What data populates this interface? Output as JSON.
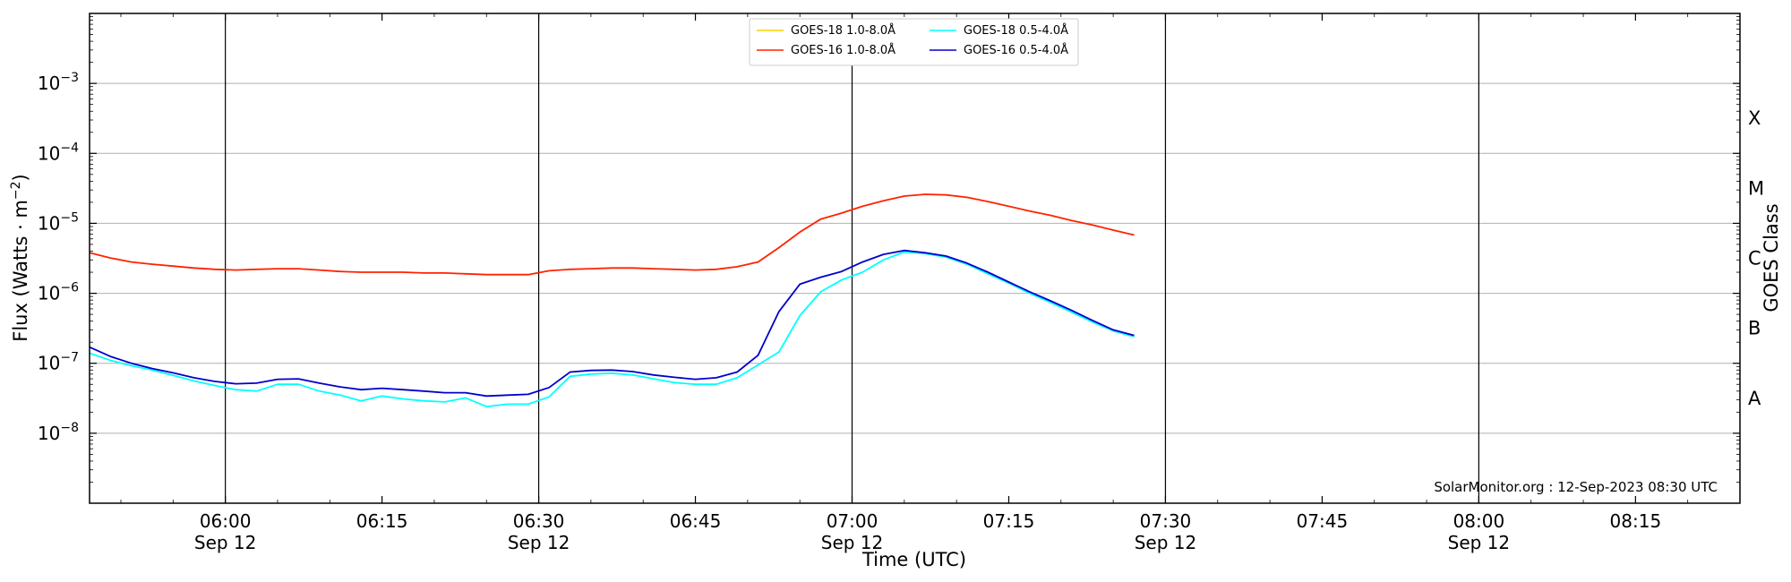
{
  "chart_data": {
    "type": "line",
    "title": "",
    "xlabel": "Time (UTC)",
    "ylabel": "Flux (Watts · m",
    "ylabel_sup": "−2",
    "ylabel_end": ")",
    "right_label": "GOES Class",
    "y_scale": "log",
    "ylim": [
      1e-09,
      0.01
    ],
    "x_range_minutes": [
      "05:47",
      "08:25"
    ],
    "grid": "horizontal at decades; vertical lines every 30 min",
    "legend": "top-center",
    "x_ticks": [
      {
        "time": "06:00",
        "date": "Sep 12"
      },
      {
        "time": "06:15",
        "date": ""
      },
      {
        "time": "06:30",
        "date": "Sep 12"
      },
      {
        "time": "06:45",
        "date": ""
      },
      {
        "time": "07:00",
        "date": "Sep 12"
      },
      {
        "time": "07:15",
        "date": ""
      },
      {
        "time": "07:30",
        "date": "Sep 12"
      },
      {
        "time": "07:45",
        "date": ""
      },
      {
        "time": "08:00",
        "date": "Sep 12"
      },
      {
        "time": "08:15",
        "date": ""
      }
    ],
    "y_ticks": [
      {
        "base": "10",
        "exp": "−3",
        "value": 0.001
      },
      {
        "base": "10",
        "exp": "−4",
        "value": 0.0001
      },
      {
        "base": "10",
        "exp": "−5",
        "value": 1e-05
      },
      {
        "base": "10",
        "exp": "−6",
        "value": 1e-06
      },
      {
        "base": "10",
        "exp": "−7",
        "value": 1e-07
      },
      {
        "base": "10",
        "exp": "−8",
        "value": 1e-08
      }
    ],
    "goes_classes": [
      {
        "label": "X",
        "value": 0.000316
      },
      {
        "label": "M",
        "value": 3.16e-05
      },
      {
        "label": "C",
        "value": 3.16e-06
      },
      {
        "label": "B",
        "value": 3.16e-07
      },
      {
        "label": "A",
        "value": 3.16e-08
      }
    ],
    "annotation": "SolarMonitor.org : 12-Sep-2023 08:30 UTC",
    "series": [
      {
        "name": "GOES-18 1.0-8.0Å",
        "color": "#f5d000",
        "x": [],
        "y": []
      },
      {
        "name": "GOES-18 0.5-4.0Å",
        "color": "#00ffff",
        "x": [
          "05:47",
          "05:49",
          "05:51",
          "05:53",
          "05:55",
          "05:57",
          "05:59",
          "06:01",
          "06:03",
          "06:05",
          "06:07",
          "06:09",
          "06:11",
          "06:13",
          "06:15",
          "06:17",
          "06:19",
          "06:21",
          "06:23",
          "06:25",
          "06:27",
          "06:29",
          "06:31",
          "06:33",
          "06:35",
          "06:37",
          "06:39",
          "06:41",
          "06:43",
          "06:45",
          "06:47",
          "06:49",
          "06:51",
          "06:53",
          "06:55",
          "06:57",
          "06:59",
          "07:01",
          "07:03",
          "07:05",
          "07:07",
          "07:09",
          "07:11",
          "07:13",
          "07:15",
          "07:17",
          "07:19",
          "07:21",
          "07:23",
          "07:25",
          "07:27"
        ],
        "y": [
          1.4e-07,
          1.1e-07,
          9.2e-08,
          8e-08,
          6.7e-08,
          5.6e-08,
          4.8e-08,
          4.2e-08,
          4e-08,
          5e-08,
          5e-08,
          4e-08,
          3.5e-08,
          2.9e-08,
          3.4e-08,
          3.1e-08,
          2.9e-08,
          2.8e-08,
          3.2e-08,
          2.4e-08,
          2.6e-08,
          2.6e-08,
          3.3e-08,
          6.5e-08,
          7e-08,
          7.2e-08,
          6.8e-08,
          6e-08,
          5.3e-08,
          5e-08,
          5e-08,
          6.2e-08,
          9.5e-08,
          1.45e-07,
          4.8e-07,
          1.05e-06,
          1.55e-06,
          2e-06,
          3e-06,
          3.9e-06,
          3.7e-06,
          3.3e-06,
          2.6e-06,
          1.9e-06,
          1.4e-06,
          1e-06,
          7.4e-07,
          5.4e-07,
          3.9e-07,
          2.9e-07,
          2.4e-07
        ]
      },
      {
        "name": "GOES-16 1.0-8.0Å",
        "color": "#ff2200",
        "x": [
          "05:47",
          "05:49",
          "05:51",
          "05:53",
          "05:55",
          "05:57",
          "05:59",
          "06:01",
          "06:03",
          "06:05",
          "06:07",
          "06:09",
          "06:11",
          "06:13",
          "06:15",
          "06:17",
          "06:19",
          "06:21",
          "06:23",
          "06:25",
          "06:27",
          "06:29",
          "06:31",
          "06:33",
          "06:35",
          "06:37",
          "06:39",
          "06:41",
          "06:43",
          "06:45",
          "06:47",
          "06:49",
          "06:51",
          "06:53",
          "06:55",
          "06:57",
          "06:59",
          "07:01",
          "07:03",
          "07:05",
          "07:07",
          "07:09",
          "07:11",
          "07:13",
          "07:15",
          "07:17",
          "07:19",
          "07:21",
          "07:23",
          "07:25",
          "07:27"
        ],
        "y": [
          3.8e-06,
          3.2e-06,
          2.8e-06,
          2.6e-06,
          2.45e-06,
          2.3e-06,
          2.2e-06,
          2.15e-06,
          2.2e-06,
          2.25e-06,
          2.25e-06,
          2.15e-06,
          2.05e-06,
          2e-06,
          2e-06,
          2e-06,
          1.95e-06,
          1.95e-06,
          1.9e-06,
          1.85e-06,
          1.85e-06,
          1.85e-06,
          2.1e-06,
          2.2e-06,
          2.25e-06,
          2.3e-06,
          2.3e-06,
          2.25e-06,
          2.2e-06,
          2.15e-06,
          2.2e-06,
          2.4e-06,
          2.8e-06,
          4.5e-06,
          7.5e-06,
          1.15e-05,
          1.4e-05,
          1.75e-05,
          2.1e-05,
          2.45e-05,
          2.6e-05,
          2.55e-05,
          2.35e-05,
          2.05e-05,
          1.75e-05,
          1.5e-05,
          1.3e-05,
          1.1e-05,
          9.5e-06,
          8e-06,
          6.8e-06
        ]
      },
      {
        "name": "GOES-16 0.5-4.0Å",
        "color": "#0000cc",
        "x": [
          "05:47",
          "05:49",
          "05:51",
          "05:53",
          "05:55",
          "05:57",
          "05:59",
          "06:01",
          "06:03",
          "06:05",
          "06:07",
          "06:09",
          "06:11",
          "06:13",
          "06:15",
          "06:17",
          "06:19",
          "06:21",
          "06:23",
          "06:25",
          "06:27",
          "06:29",
          "06:31",
          "06:33",
          "06:35",
          "06:37",
          "06:39",
          "06:41",
          "06:43",
          "06:45",
          "06:47",
          "06:49",
          "06:51",
          "06:53",
          "06:55",
          "06:57",
          "06:59",
          "07:01",
          "07:03",
          "07:05",
          "07:07",
          "07:09",
          "07:11",
          "07:13",
          "07:15",
          "07:17",
          "07:19",
          "07:21",
          "07:23",
          "07:25",
          "07:27"
        ],
        "y": [
          1.7e-07,
          1.25e-07,
          1e-07,
          8.4e-08,
          7.3e-08,
          6.2e-08,
          5.5e-08,
          5.1e-08,
          5.2e-08,
          5.9e-08,
          6e-08,
          5.2e-08,
          4.6e-08,
          4.2e-08,
          4.4e-08,
          4.2e-08,
          4e-08,
          3.8e-08,
          3.8e-08,
          3.4e-08,
          3.5e-08,
          3.6e-08,
          4.5e-08,
          7.5e-08,
          7.9e-08,
          8e-08,
          7.6e-08,
          6.8e-08,
          6.3e-08,
          5.9e-08,
          6.2e-08,
          7.5e-08,
          1.3e-07,
          5.5e-07,
          1.35e-06,
          1.7e-06,
          2.05e-06,
          2.8e-06,
          3.6e-06,
          4.1e-06,
          3.8e-06,
          3.4e-06,
          2.7e-06,
          2e-06,
          1.45e-06,
          1.05e-06,
          7.8e-07,
          5.7e-07,
          4.1e-07,
          3e-07,
          2.5e-07
        ]
      }
    ],
    "legend_order": [
      0,
      1,
      2,
      3
    ]
  }
}
